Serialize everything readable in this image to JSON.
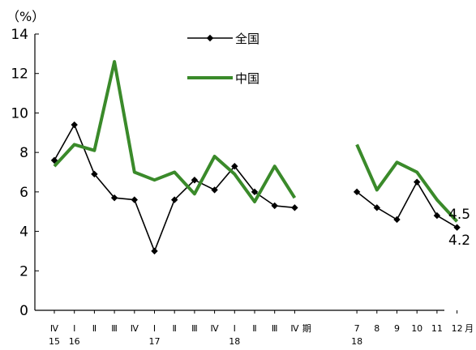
{
  "chart_data": {
    "type": "line",
    "unit_label": "（%）",
    "ylim": [
      0,
      14
    ],
    "yticks": [
      "0",
      "2",
      "4",
      "6",
      "8",
      "10",
      "12",
      "14"
    ],
    "grid": false,
    "legend_placement": "top-center",
    "categories": [
      "Ⅳ",
      "Ⅰ",
      "Ⅱ",
      "Ⅲ",
      "Ⅳ",
      "Ⅰ",
      "Ⅱ",
      "Ⅲ",
      "Ⅳ",
      "Ⅰ",
      "Ⅱ",
      "Ⅲ",
      "Ⅳ",
      "7",
      "8",
      "9",
      "10",
      "11",
      "12"
    ],
    "x_suffixes": [
      {
        "after_index": 12,
        "text": "期"
      },
      {
        "after_index": 18,
        "text": "月"
      }
    ],
    "year_labels": [
      {
        "index": 0,
        "text": "15"
      },
      {
        "index": 1,
        "text": "16"
      },
      {
        "index": 5,
        "text": "17"
      },
      {
        "index": 9,
        "text": "18"
      },
      {
        "index": 13,
        "text": "18"
      }
    ],
    "segments": [
      {
        "start": 0,
        "end": 12
      },
      {
        "start": 13,
        "end": 18
      }
    ],
    "series": [
      {
        "name": "全国",
        "color": "#000000",
        "marker": "diamond",
        "values": [
          7.6,
          9.4,
          6.9,
          5.7,
          5.6,
          3.0,
          5.6,
          6.6,
          6.1,
          7.3,
          6.0,
          5.3,
          5.2,
          6.0,
          5.2,
          4.6,
          6.5,
          4.8,
          4.2
        ],
        "end_label": "4.2"
      },
      {
        "name": "中国",
        "color": "#3a8a2a",
        "marker": "none",
        "values": [
          7.3,
          8.4,
          8.1,
          12.6,
          7.0,
          6.6,
          7.0,
          5.9,
          7.8,
          6.9,
          5.5,
          7.3,
          5.7,
          8.4,
          6.1,
          7.5,
          7.0,
          5.6,
          4.5
        ],
        "end_label": "4.5"
      }
    ]
  }
}
